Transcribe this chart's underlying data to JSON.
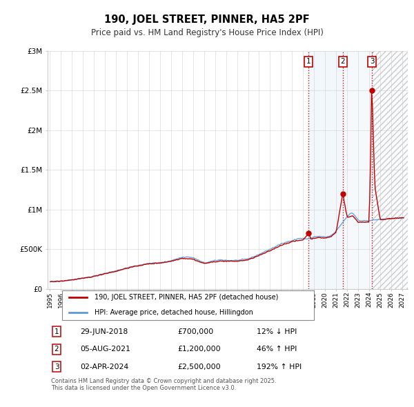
{
  "title": "190, JOEL STREET, PINNER, HA5 2PF",
  "subtitle": "Price paid vs. HM Land Registry's House Price Index (HPI)",
  "ylim": [
    0,
    3000000
  ],
  "xlim_start": 1994.8,
  "xlim_end": 2027.5,
  "yticks": [
    0,
    500000,
    1000000,
    1500000,
    2000000,
    2500000,
    3000000
  ],
  "ytick_labels": [
    "£0",
    "£500K",
    "£1M",
    "£1.5M",
    "£2M",
    "£2.5M",
    "£3M"
  ],
  "xticks": [
    1995,
    1996,
    1997,
    1998,
    1999,
    2000,
    2001,
    2002,
    2003,
    2004,
    2005,
    2006,
    2007,
    2008,
    2009,
    2010,
    2011,
    2012,
    2013,
    2014,
    2015,
    2016,
    2017,
    2018,
    2019,
    2020,
    2021,
    2022,
    2023,
    2024,
    2025,
    2026,
    2027
  ],
  "hpi_color": "#5b9bd5",
  "price_color": "#c00000",
  "transaction_color": "#c00000",
  "shade_color": "#daeaf7",
  "transactions": [
    {
      "num": 1,
      "year": 2018.496,
      "price": 700000,
      "label": "1",
      "date": "29-JUN-2018",
      "price_str": "£700,000",
      "hpi_pct": "12%",
      "hpi_dir": "↓"
    },
    {
      "num": 2,
      "year": 2021.588,
      "price": 1200000,
      "label": "2",
      "date": "05-AUG-2021",
      "price_str": "£1,200,000",
      "hpi_pct": "46%",
      "hpi_dir": "↑"
    },
    {
      "num": 3,
      "year": 2024.248,
      "price": 2500000,
      "label": "3",
      "date": "02-APR-2024",
      "price_str": "£2,500,000",
      "hpi_pct": "192%",
      "hpi_dir": "↑"
    }
  ],
  "legend_line1": "190, JOEL STREET, PINNER, HA5 2PF (detached house)",
  "legend_line2": "HPI: Average price, detached house, Hillingdon",
  "footer": "Contains HM Land Registry data © Crown copyright and database right 2025.\nThis data is licensed under the Open Government Licence v3.0.",
  "background_color": "#ffffff",
  "grid_color": "#cccccc"
}
